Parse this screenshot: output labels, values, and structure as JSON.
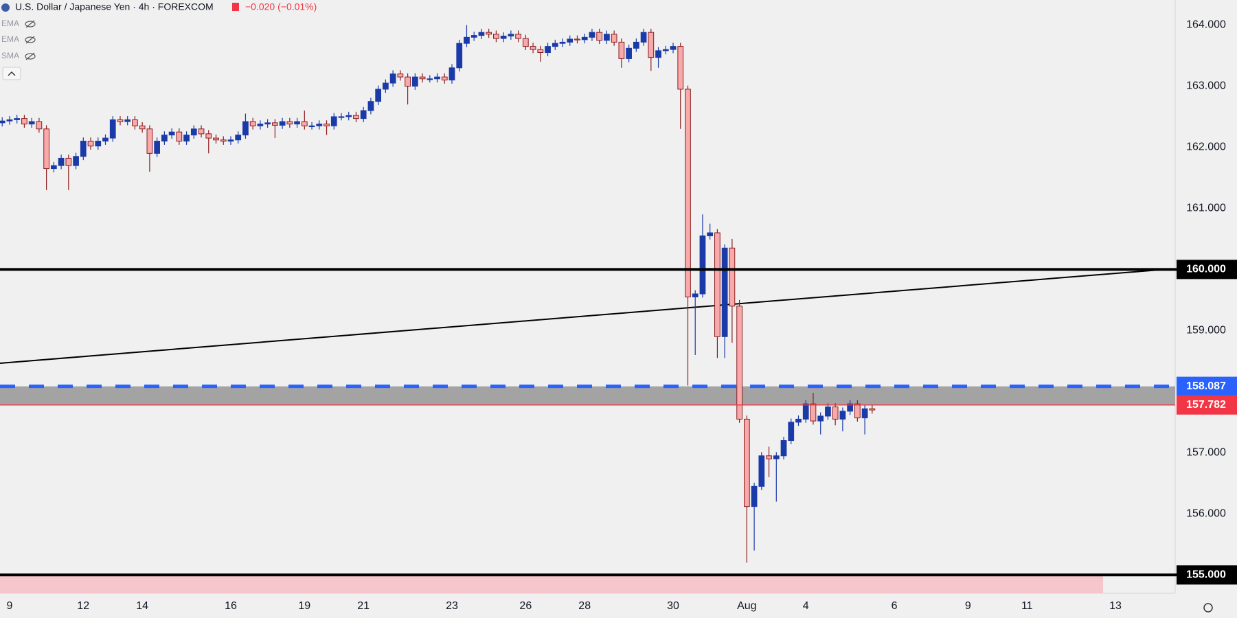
{
  "header": {
    "symbol": "U.S. Dollar / Japanese Yen · 4h · FOREXCOM",
    "change": "−0.020 (−0.01%)",
    "indicators": [
      "EMA",
      "EMA",
      "SMA"
    ]
  },
  "chart_data": {
    "type": "candlestick",
    "up_color": "#1a3aa8",
    "down_color": "#f7a9ab",
    "down_edge": "#8b1c1c",
    "open": [
      162.4,
      162.43,
      162.45,
      162.47,
      162.38,
      162.42,
      162.3,
      161.65,
      161.7,
      161.82,
      161.7,
      161.85,
      162.1,
      162.02,
      162.1,
      162.15,
      162.45,
      162.42,
      162.45,
      162.35,
      162.3,
      161.9,
      162.1,
      162.2,
      162.25,
      162.1,
      162.2,
      162.3,
      162.22,
      162.15,
      162.12,
      162.1,
      162.12,
      162.2,
      162.42,
      162.35,
      162.38,
      162.4,
      162.36,
      162.42,
      162.38,
      162.42,
      162.35,
      162.35,
      162.38,
      162.35,
      162.5,
      162.5,
      162.52,
      162.47,
      162.6,
      162.75,
      162.95,
      163.05,
      163.2,
      163.15,
      163.0,
      163.15,
      163.12,
      163.12,
      163.15,
      163.1,
      163.3,
      163.7,
      163.8,
      163.83,
      163.88,
      163.85,
      163.78,
      163.82,
      163.85,
      163.78,
      163.65,
      163.6,
      163.55,
      163.65,
      163.7,
      163.72,
      163.77,
      163.76,
      163.8,
      163.88,
      163.75,
      163.85,
      163.72,
      163.45,
      163.62,
      163.72,
      163.88,
      163.47,
      163.58,
      163.6,
      163.65,
      162.95,
      159.55,
      159.6,
      160.55,
      160.6,
      158.9,
      160.35,
      159.4,
      157.55,
      156.12,
      156.45,
      156.95,
      156.9,
      156.95,
      157.2,
      157.5,
      157.55,
      157.8,
      157.52,
      157.6,
      157.75,
      157.55,
      157.68,
      157.8,
      157.57,
      157.72
    ],
    "high": [
      162.49,
      162.51,
      162.53,
      162.53,
      162.48,
      162.48,
      162.36,
      161.76,
      161.88,
      161.88,
      161.91,
      162.16,
      162.16,
      162.16,
      162.21,
      162.51,
      162.51,
      162.51,
      162.51,
      162.41,
      162.36,
      162.16,
      162.26,
      162.31,
      162.31,
      162.26,
      162.36,
      162.36,
      162.28,
      162.21,
      162.18,
      162.18,
      162.26,
      162.55,
      162.48,
      162.44,
      162.46,
      162.46,
      162.48,
      162.48,
      162.48,
      162.6,
      162.41,
      162.44,
      162.44,
      162.56,
      162.56,
      162.58,
      162.58,
      162.66,
      162.81,
      163.01,
      163.11,
      163.26,
      163.26,
      163.21,
      163.21,
      163.21,
      163.18,
      163.21,
      163.21,
      163.36,
      163.76,
      164.0,
      163.89,
      163.94,
      163.94,
      163.91,
      163.88,
      163.91,
      163.91,
      163.84,
      163.71,
      163.66,
      163.71,
      163.76,
      163.78,
      163.83,
      163.83,
      163.86,
      163.94,
      163.94,
      163.91,
      163.91,
      163.78,
      163.68,
      163.78,
      163.94,
      163.94,
      163.64,
      163.66,
      163.71,
      163.71,
      163.01,
      159.66,
      160.9,
      160.75,
      160.66,
      160.41,
      160.5,
      159.5,
      157.61,
      156.51,
      157.01,
      157.1,
      157.01,
      157.26,
      157.56,
      157.61,
      157.86,
      157.98,
      157.66,
      157.81,
      157.81,
      157.74,
      157.86,
      157.86,
      157.78,
      157.78
    ],
    "low": [
      162.34,
      162.37,
      162.39,
      162.32,
      162.32,
      162.24,
      161.3,
      161.59,
      161.64,
      161.3,
      161.64,
      161.79,
      161.96,
      161.96,
      162.04,
      162.09,
      162.36,
      162.36,
      162.29,
      162.24,
      161.6,
      161.84,
      162.04,
      162.14,
      162.04,
      162.04,
      162.14,
      162.16,
      161.9,
      162.06,
      162.04,
      162.04,
      162.06,
      162.14,
      162.29,
      162.29,
      162.32,
      162.15,
      162.3,
      162.32,
      162.32,
      162.29,
      162.29,
      162.29,
      162.2,
      162.29,
      162.44,
      162.44,
      162.41,
      162.41,
      162.54,
      162.69,
      162.89,
      162.99,
      163.09,
      162.7,
      162.94,
      163.06,
      163.06,
      163.06,
      163.04,
      163.04,
      163.24,
      163.64,
      163.74,
      163.77,
      163.79,
      163.72,
      163.72,
      163.76,
      163.72,
      163.59,
      163.54,
      163.4,
      163.49,
      163.59,
      163.64,
      163.66,
      163.7,
      163.7,
      163.74,
      163.69,
      163.69,
      163.66,
      163.3,
      163.39,
      163.56,
      163.66,
      163.25,
      163.3,
      163.52,
      163.54,
      162.3,
      158.1,
      158.6,
      159.54,
      160.49,
      158.55,
      158.55,
      158.8,
      157.49,
      155.2,
      155.4,
      156.39,
      156.6,
      156.2,
      156.89,
      157.14,
      157.44,
      157.49,
      157.46,
      157.3,
      157.54,
      157.45,
      157.35,
      157.62,
      157.51,
      157.3,
      157.64
    ],
    "close": [
      162.43,
      162.45,
      162.47,
      162.38,
      162.42,
      162.3,
      161.65,
      161.7,
      161.82,
      161.7,
      161.85,
      162.1,
      162.02,
      162.1,
      162.15,
      162.45,
      162.42,
      162.45,
      162.35,
      162.3,
      161.9,
      162.1,
      162.2,
      162.25,
      162.1,
      162.2,
      162.3,
      162.22,
      162.15,
      162.12,
      162.1,
      162.12,
      162.2,
      162.42,
      162.35,
      162.38,
      162.4,
      162.36,
      162.42,
      162.38,
      162.42,
      162.35,
      162.35,
      162.38,
      162.35,
      162.5,
      162.5,
      162.52,
      162.47,
      162.6,
      162.75,
      162.95,
      163.05,
      163.2,
      163.15,
      163.0,
      163.15,
      163.12,
      163.12,
      163.15,
      163.1,
      163.3,
      163.7,
      163.8,
      163.83,
      163.88,
      163.85,
      163.78,
      163.82,
      163.85,
      163.78,
      163.65,
      163.6,
      163.55,
      163.65,
      163.7,
      163.72,
      163.77,
      163.76,
      163.8,
      163.88,
      163.75,
      163.85,
      163.72,
      163.45,
      163.62,
      163.72,
      163.88,
      163.47,
      163.58,
      163.6,
      163.65,
      162.95,
      159.55,
      159.6,
      160.55,
      160.6,
      158.9,
      160.35,
      159.4,
      157.55,
      156.12,
      156.45,
      156.95,
      156.9,
      156.95,
      157.2,
      157.5,
      157.55,
      157.8,
      157.52,
      157.6,
      157.75,
      157.55,
      157.68,
      157.8,
      157.57,
      157.72,
      157.7
    ],
    "xlim": [
      -0.3,
      159.1
    ],
    "xticks": [
      {
        "value": 1,
        "label": "9"
      },
      {
        "value": 11,
        "label": "12"
      },
      {
        "value": 19,
        "label": "14"
      },
      {
        "value": 31,
        "label": "16"
      },
      {
        "value": 41,
        "label": "19"
      },
      {
        "value": 49,
        "label": "21"
      },
      {
        "value": 61,
        "label": "23"
      },
      {
        "value": 71,
        "label": "26"
      },
      {
        "value": 79,
        "label": "28"
      },
      {
        "value": 91,
        "label": "30"
      },
      {
        "value": 101,
        "label": "Aug"
      },
      {
        "value": 109,
        "label": "4"
      },
      {
        "value": 121,
        "label": "6"
      },
      {
        "value": 131,
        "label": "9"
      },
      {
        "value": 139,
        "label": "11"
      },
      {
        "value": 151,
        "label": "13"
      }
    ],
    "ylim": [
      154.7,
      164.41
    ],
    "yticks": [
      {
        "value": 155,
        "label": "155.000"
      },
      {
        "value": 156,
        "label": "156.000"
      },
      {
        "value": 157,
        "label": "157.000"
      },
      {
        "value": 158,
        "label": "158.000"
      },
      {
        "value": 159,
        "label": "159.000"
      },
      {
        "value": 160,
        "label": "160.000"
      },
      {
        "value": 161,
        "label": "161.000"
      },
      {
        "value": 162,
        "label": "162.000"
      },
      {
        "value": 163,
        "label": "163.000"
      },
      {
        "value": 164,
        "label": "164.000"
      }
    ],
    "levels": [
      {
        "value": 160,
        "label": "160.000",
        "color": "#000000",
        "style": "solid"
      },
      {
        "value": 158.087,
        "label": "158.087",
        "color": "#2962ff",
        "style": "dashed"
      },
      {
        "value": 157.782,
        "label": "157.782",
        "color": "#f23645",
        "style": "solid"
      },
      {
        "value": 155,
        "label": "155.000",
        "color": "#000000",
        "style": "solid"
      }
    ]
  }
}
